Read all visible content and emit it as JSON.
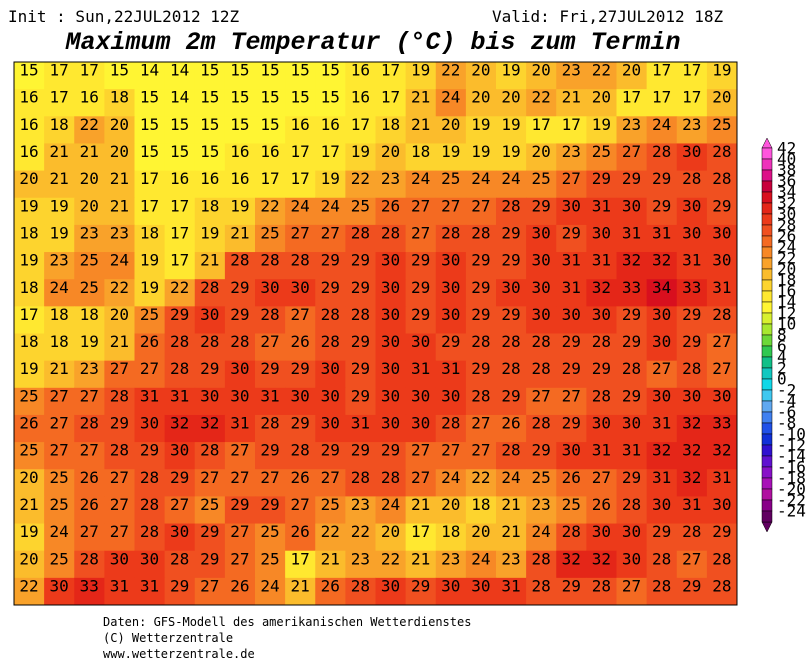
{
  "header": {
    "init": "Init : Sun,22JUL2012 12Z",
    "valid": "Valid: Fri,27JUL2012 18Z",
    "title": "Maximum 2m Temperatur (°C) bis zum Termin"
  },
  "map": {
    "values": [
      [
        15,
        17,
        17,
        15,
        14,
        14,
        15,
        15,
        15,
        15,
        15,
        16,
        17,
        19,
        22,
        20,
        19,
        20,
        23,
        22,
        20,
        17,
        17,
        19
      ],
      [
        16,
        17,
        16,
        18,
        15,
        14,
        15,
        15,
        15,
        15,
        15,
        16,
        17,
        21,
        24,
        20,
        20,
        22,
        21,
        20,
        17,
        17,
        17,
        20
      ],
      [
        16,
        18,
        22,
        20,
        15,
        15,
        15,
        15,
        15,
        16,
        16,
        17,
        18,
        21,
        20,
        19,
        19,
        17,
        17,
        19,
        23,
        24,
        23,
        25
      ],
      [
        16,
        21,
        21,
        20,
        15,
        15,
        15,
        16,
        16,
        17,
        17,
        19,
        20,
        18,
        19,
        19,
        19,
        20,
        23,
        25,
        27,
        28,
        30,
        28
      ],
      [
        20,
        21,
        20,
        21,
        17,
        16,
        16,
        16,
        17,
        17,
        19,
        22,
        23,
        24,
        25,
        24,
        24,
        25,
        27,
        29,
        29,
        29,
        28,
        28
      ],
      [
        19,
        19,
        20,
        21,
        17,
        17,
        18,
        19,
        22,
        24,
        24,
        25,
        26,
        27,
        27,
        27,
        28,
        29,
        30,
        31,
        30,
        29,
        30,
        29
      ],
      [
        18,
        19,
        23,
        23,
        18,
        17,
        19,
        21,
        25,
        27,
        27,
        28,
        28,
        27,
        28,
        28,
        29,
        30,
        29,
        30,
        31,
        31,
        30,
        30
      ],
      [
        19,
        23,
        25,
        24,
        19,
        17,
        21,
        28,
        28,
        28,
        29,
        29,
        30,
        29,
        30,
        29,
        29,
        30,
        31,
        31,
        32,
        32,
        31,
        30
      ],
      [
        18,
        24,
        25,
        22,
        19,
        22,
        28,
        29,
        30,
        30,
        29,
        29,
        30,
        29,
        30,
        29,
        30,
        30,
        31,
        32,
        33,
        34,
        33,
        31
      ],
      [
        17,
        18,
        18,
        20,
        25,
        29,
        30,
        29,
        28,
        27,
        28,
        28,
        30,
        29,
        30,
        29,
        29,
        30,
        30,
        30,
        29,
        30,
        29,
        28
      ],
      [
        18,
        18,
        19,
        21,
        26,
        28,
        28,
        28,
        27,
        26,
        28,
        29,
        30,
        30,
        29,
        28,
        28,
        28,
        29,
        28,
        29,
        30,
        29,
        27
      ],
      [
        19,
        21,
        23,
        27,
        27,
        28,
        29,
        30,
        29,
        29,
        30,
        29,
        30,
        31,
        31,
        29,
        28,
        28,
        29,
        29,
        28,
        27,
        28,
        27
      ],
      [
        25,
        27,
        27,
        28,
        31,
        31,
        30,
        30,
        31,
        30,
        30,
        29,
        30,
        30,
        30,
        28,
        29,
        27,
        27,
        28,
        29,
        30,
        30,
        30
      ],
      [
        26,
        27,
        28,
        29,
        30,
        32,
        32,
        31,
        28,
        29,
        30,
        31,
        30,
        30,
        28,
        27,
        26,
        28,
        29,
        30,
        30,
        31,
        32,
        33
      ],
      [
        25,
        27,
        27,
        28,
        29,
        30,
        28,
        27,
        29,
        28,
        29,
        29,
        29,
        27,
        27,
        27,
        28,
        29,
        30,
        31,
        31,
        32,
        32,
        32
      ],
      [
        20,
        25,
        26,
        27,
        28,
        29,
        27,
        27,
        27,
        26,
        27,
        28,
        28,
        27,
        24,
        22,
        24,
        25,
        26,
        27,
        29,
        31,
        32,
        31
      ],
      [
        21,
        25,
        26,
        27,
        28,
        27,
        25,
        29,
        29,
        27,
        25,
        23,
        24,
        21,
        20,
        18,
        21,
        23,
        25,
        26,
        28,
        30,
        31,
        30
      ],
      [
        19,
        24,
        27,
        27,
        28,
        30,
        29,
        27,
        25,
        26,
        22,
        22,
        20,
        17,
        18,
        20,
        21,
        24,
        28,
        30,
        30,
        29,
        28,
        29
      ],
      [
        20,
        25,
        28,
        30,
        30,
        28,
        29,
        27,
        25,
        17,
        21,
        23,
        22,
        21,
        23,
        24,
        23,
        28,
        32,
        32,
        30,
        28,
        27,
        28
      ],
      [
        22,
        30,
        33,
        31,
        31,
        29,
        27,
        26,
        24,
        21,
        26,
        28,
        30,
        29,
        30,
        30,
        31,
        28,
        29,
        28,
        27,
        28,
        29,
        28
      ]
    ]
  },
  "colorbar": {
    "levels": [
      42,
      40,
      38,
      36,
      34,
      32,
      30,
      28,
      26,
      24,
      22,
      20,
      18,
      16,
      14,
      12,
      10,
      8,
      6,
      4,
      2,
      0,
      -2,
      -4,
      -6,
      -8,
      -10,
      -12,
      -14,
      -16,
      -18,
      -20,
      -22,
      -24
    ],
    "colors": [
      "#ff55dd",
      "#ee33bb",
      "#dd1188",
      "#c8003c",
      "#d80f1e",
      "#e42618",
      "#ec3a1a",
      "#f05020",
      "#f46a22",
      "#f78826",
      "#f9a22a",
      "#fbbc2c",
      "#fdd42e",
      "#ffe830",
      "#fff533",
      "#d8f030",
      "#a8e830",
      "#6cd838",
      "#30c850",
      "#10c088",
      "#10c8c0",
      "#10d8e8",
      "#40c8f0",
      "#60a8f0",
      "#4080f0",
      "#2050e8",
      "#1030d8",
      "#3010d0",
      "#6010d0",
      "#8810c8",
      "#a810b8",
      "#b010a0",
      "#880088",
      "#600060"
    ]
  },
  "footer": [
    "Daten: GFS-Modell des amerikanischen Wetterdienstes",
    "(C) Wetterzentrale",
    "www.wetterzentrale.de"
  ]
}
